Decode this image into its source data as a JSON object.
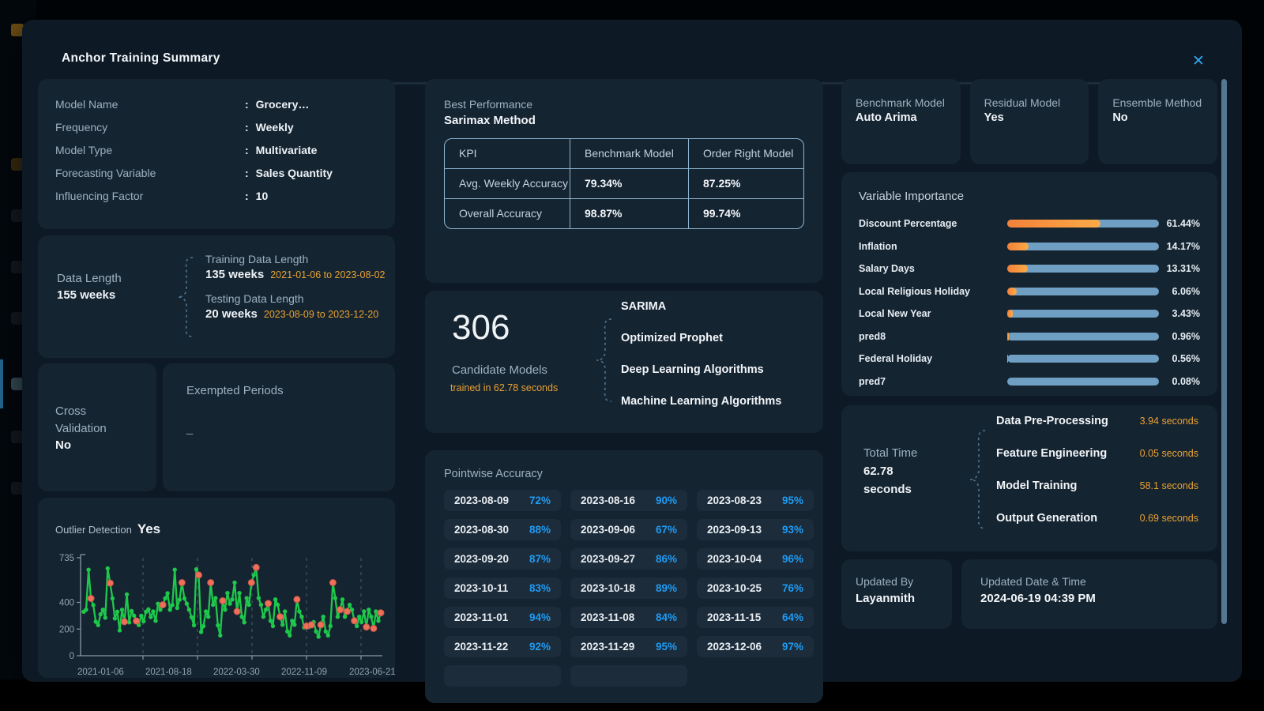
{
  "modal": {
    "title": "Anchor Training Summary",
    "close_icon": "✕"
  },
  "accent_colors": {
    "orange": "#f0a63a",
    "blue": "#1f9bf4",
    "green": "#1ec84b",
    "red_outlier": "#ee6f5a",
    "bar_track": "#6f9fc2",
    "close_blue": "#2fa7f2"
  },
  "model_info": {
    "rows": [
      {
        "label": "Model Name",
        "value": "Grocery…"
      },
      {
        "label": "Frequency",
        "value": "Weekly"
      },
      {
        "label": "Model Type",
        "value": "Multivariate"
      },
      {
        "label": "Forecasting Variable",
        "value": "Sales Quantity"
      },
      {
        "label": "Influencing Factor",
        "value": "10"
      }
    ]
  },
  "data_length": {
    "label": "Data Length",
    "total": "155 weeks",
    "training": {
      "title": "Training Data Length",
      "value": "135 weeks",
      "range": "2021-01-06 to 2023-08-02"
    },
    "testing": {
      "title": "Testing Data Length",
      "value": "20 weeks",
      "range": "2023-08-09 to 2023-12-20"
    }
  },
  "cross_validation": {
    "label": "Cross Validation",
    "value": "No"
  },
  "exempted_periods": {
    "label": "Exempted Periods",
    "value": "_"
  },
  "outlier_detection": {
    "label": "Outlier Detection",
    "value": "Yes"
  },
  "best_performance": {
    "label": "Best Performance",
    "value": "Sarimax Method",
    "table": {
      "headers": [
        "KPI",
        "Benchmark Model",
        "Order Right Model"
      ],
      "rows": [
        [
          "Avg. Weekly Accuracy",
          "79.34%",
          "87.25%"
        ],
        [
          "Overall Accuracy",
          "98.87%",
          "99.74%"
        ]
      ]
    }
  },
  "candidate_models": {
    "count": "306",
    "label": "Candidate Models",
    "sub": "trained in 62.78 seconds",
    "items": [
      "SARIMA",
      "Optimized Prophet",
      "Deep Learning Algorithms",
      "Machine Learning Algorithms"
    ]
  },
  "pointwise": {
    "title": "Pointwise Accuracy",
    "chips": [
      {
        "date": "2023-08-09",
        "value": "72%"
      },
      {
        "date": "2023-08-16",
        "value": "90%"
      },
      {
        "date": "2023-08-23",
        "value": "95%"
      },
      {
        "date": "2023-08-30",
        "value": "88%"
      },
      {
        "date": "2023-09-06",
        "value": "67%"
      },
      {
        "date": "2023-09-13",
        "value": "93%"
      },
      {
        "date": "2023-09-20",
        "value": "87%"
      },
      {
        "date": "2023-09-27",
        "value": "86%"
      },
      {
        "date": "2023-10-04",
        "value": "96%"
      },
      {
        "date": "2023-10-11",
        "value": "83%"
      },
      {
        "date": "2023-10-18",
        "value": "89%"
      },
      {
        "date": "2023-10-25",
        "value": "76%"
      },
      {
        "date": "2023-11-01",
        "value": "94%"
      },
      {
        "date": "2023-11-08",
        "value": "84%"
      },
      {
        "date": "2023-11-15",
        "value": "64%"
      },
      {
        "date": "2023-11-22",
        "value": "92%"
      },
      {
        "date": "2023-11-29",
        "value": "95%"
      },
      {
        "date": "2023-12-06",
        "value": "97%"
      }
    ],
    "partial_chips": 2
  },
  "summary_cards": [
    {
      "label": "Benchmark Model",
      "value": "Auto Arima"
    },
    {
      "label": "Residual Model",
      "value": "Yes"
    },
    {
      "label": "Ensemble Method",
      "value": "No"
    }
  ],
  "variable_importance": {
    "title": "Variable Importance",
    "bars": [
      {
        "label": "Discount Percentage",
        "value": 61.44,
        "display": "61.44%"
      },
      {
        "label": "Inflation",
        "value": 14.17,
        "display": "14.17%"
      },
      {
        "label": "Salary Days",
        "value": 13.31,
        "display": "13.31%"
      },
      {
        "label": "Local Religious Holiday",
        "value": 6.06,
        "display": "6.06%"
      },
      {
        "label": "Local New Year",
        "value": 3.43,
        "display": "3.43%"
      },
      {
        "label": "pred8",
        "value": 0.96,
        "display": "0.96%"
      },
      {
        "label": "Federal Holiday",
        "value": 0.56,
        "display": "0.56%"
      },
      {
        "label": "pred7",
        "value": 0.08,
        "display": "0.08%"
      }
    ]
  },
  "total_time": {
    "label": "Total Time",
    "value": "62.78",
    "unit": "seconds",
    "items": [
      {
        "label": "Data Pre-Processing",
        "value": "3.94 seconds"
      },
      {
        "label": "Feature Engineering",
        "value": "0.05 seconds"
      },
      {
        "label": "Model Training",
        "value": "58.1 seconds"
      },
      {
        "label": "Output Generation",
        "value": "0.69 seconds"
      }
    ]
  },
  "updated_by": {
    "label": "Updated By",
    "value": "Layanmith"
  },
  "updated_datetime": {
    "label": "Updated Date & Time",
    "value": "2024-06-19 04:39 PM"
  },
  "chart_data": [
    {
      "type": "line",
      "title": "Outlier Detection",
      "ylabel": "",
      "xlabel": "",
      "ylim": [
        0,
        735
      ],
      "yticks": [
        0,
        200,
        400,
        735
      ],
      "xticklabels": [
        "2021-01-06",
        "2021-08-18",
        "2022-03-30",
        "2022-11-09",
        "2023-06-21"
      ],
      "grid": "vertical-dashed",
      "series_color": "#1ec84b",
      "outlier_color": "#ee6f5a",
      "values": [
        330,
        345,
        645,
        430,
        380,
        255,
        230,
        310,
        345,
        285,
        655,
        545,
        430,
        280,
        330,
        190,
        345,
        255,
        460,
        250,
        335,
        300,
        260,
        230,
        300,
        258,
        330,
        348,
        290,
        332,
        262,
        390,
        345,
        382,
        430,
        468,
        345,
        380,
        645,
        358,
        420,
        548,
        430,
        390,
        345,
        288,
        228,
        648,
        605,
        178,
        222,
        332,
        292,
        548,
        382,
        432,
        228,
        152,
        412,
        345,
        470,
        390,
        422,
        548,
        332,
        470,
        292,
        250,
        432,
        382,
        548,
        605,
        662,
        432,
        382,
        292,
        345,
        392,
        262,
        222,
        422,
        382,
        292,
        232,
        332,
        182,
        152,
        262,
        232,
        422,
        332,
        292,
        212,
        222,
        215,
        232,
        252,
        182,
        142,
        232,
        292,
        182,
        152,
        222,
        548,
        432,
        292,
        345,
        422,
        292,
        332,
        382,
        345,
        262,
        222,
        292,
        252,
        332,
        215,
        345,
        292,
        205,
        332,
        262,
        322
      ],
      "outlier_indices": [
        3,
        11,
        17,
        22,
        33,
        41,
        48,
        53,
        58,
        64,
        70,
        72,
        77,
        82,
        89,
        93,
        95,
        99,
        104,
        107,
        110,
        113,
        118,
        121,
        124
      ]
    },
    {
      "type": "bar",
      "title": "Variable Importance",
      "orientation": "horizontal",
      "categories": [
        "Discount Percentage",
        "Inflation",
        "Salary Days",
        "Local Religious Holiday",
        "Local New Year",
        "pred8",
        "Federal Holiday",
        "pred7"
      ],
      "values": [
        61.44,
        14.17,
        13.31,
        6.06,
        3.43,
        0.96,
        0.56,
        0.08
      ],
      "xlim": [
        0,
        100
      ]
    }
  ]
}
